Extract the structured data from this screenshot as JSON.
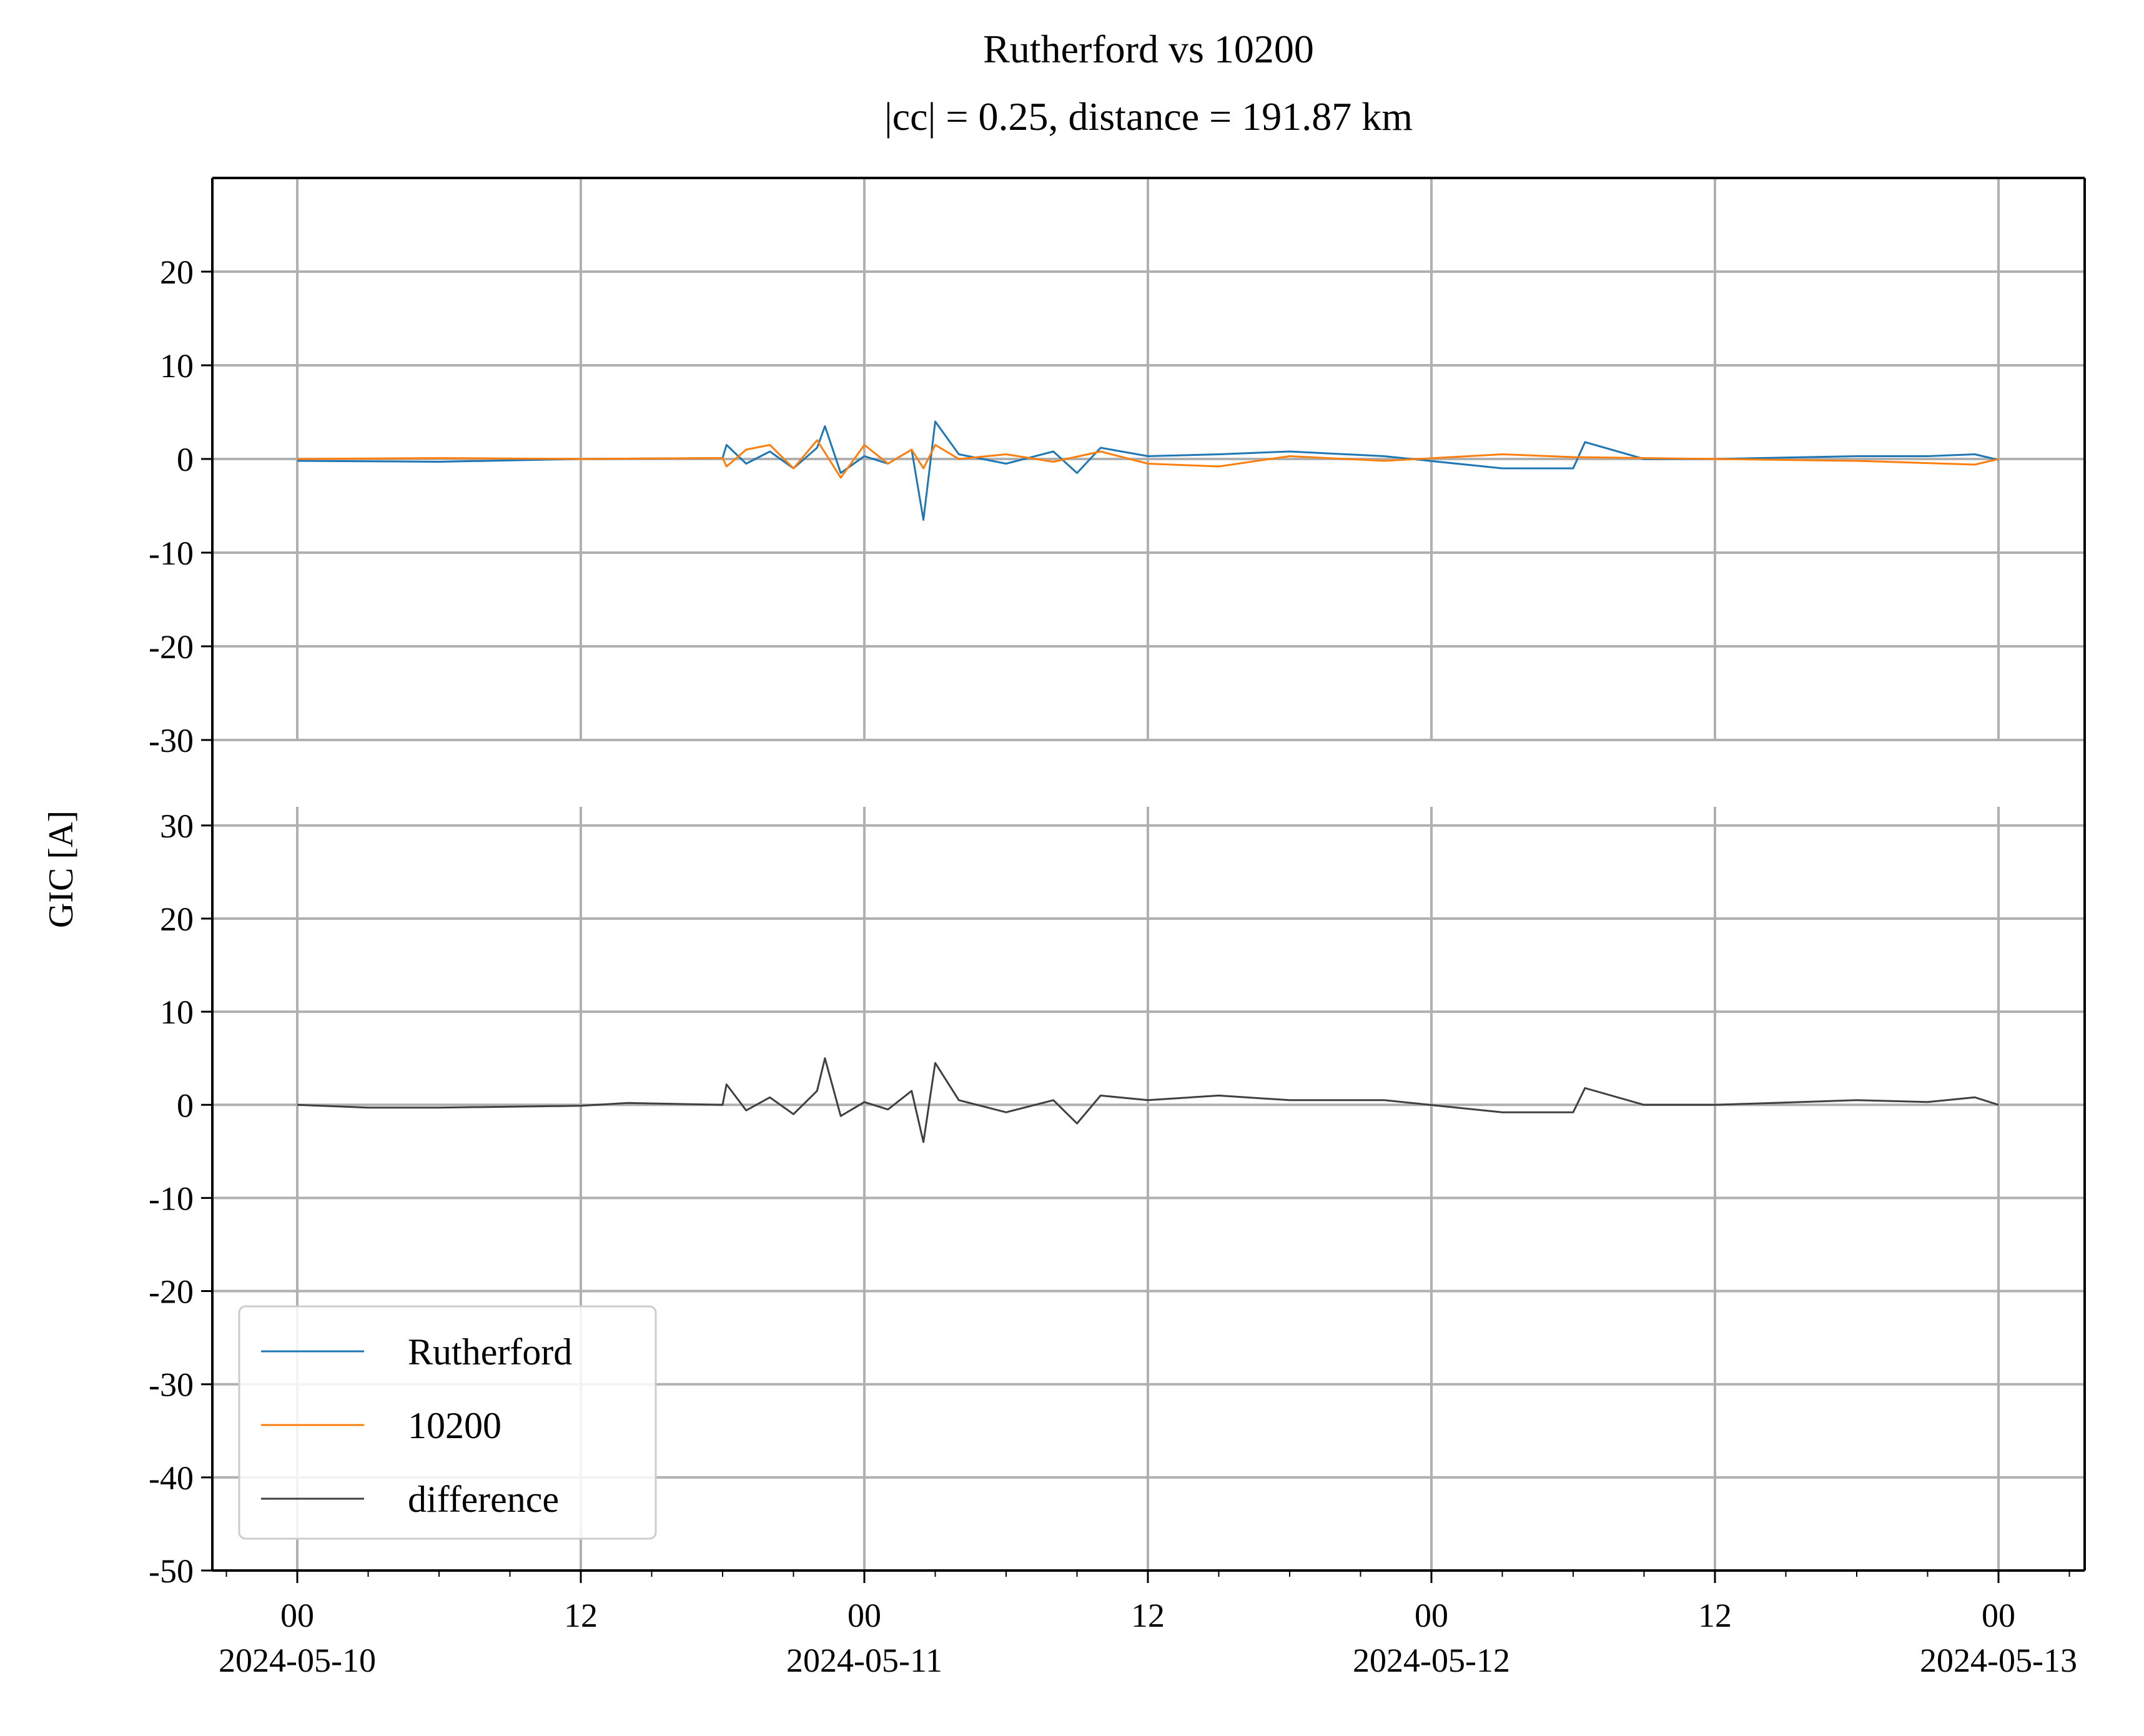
{
  "chart_data": {
    "type": "line",
    "title": "Rutherford vs 10200",
    "subtitle": "|cc| = 0.25, distance = 191.87 km",
    "ylabel": "GIC [A]",
    "xlabel": "",
    "x_range": [
      "2024-05-10T00:00",
      "2024-05-13T00:00"
    ],
    "x_ticks": [
      {
        "time": "2024-05-10T00:00",
        "hour": "00",
        "date": "2024-05-10"
      },
      {
        "time": "2024-05-10T12:00",
        "hour": "12",
        "date": ""
      },
      {
        "time": "2024-05-11T00:00",
        "hour": "00",
        "date": "2024-05-11"
      },
      {
        "time": "2024-05-11T12:00",
        "hour": "12",
        "date": ""
      },
      {
        "time": "2024-05-12T00:00",
        "hour": "00",
        "date": "2024-05-12"
      },
      {
        "time": "2024-05-12T12:00",
        "hour": "12",
        "date": ""
      },
      {
        "time": "2024-05-13T00:00",
        "hour": "00",
        "date": "2024-05-13"
      }
    ],
    "grid": true,
    "legend_position": "lower-left",
    "colors": {
      "Rutherford": "#1f77b4",
      "10200": "#ff7f0e",
      "difference": "#404040"
    },
    "panels": [
      {
        "id": "top",
        "ylim": [
          -30,
          30
        ],
        "yticks": [
          "20",
          "10",
          "0",
          "-10",
          "-20",
          "-30"
        ],
        "yticks_values": [
          20,
          10,
          0,
          -10,
          -20,
          -30
        ],
        "series": [
          {
            "name": "Rutherford",
            "x": [
              "2024-05-10T00:00",
              "2024-05-10T06:00",
              "2024-05-10T12:00",
              "2024-05-10T18:00",
              "2024-05-10T18:10",
              "2024-05-10T19:00",
              "2024-05-10T20:00",
              "2024-05-10T21:00",
              "2024-05-10T22:00",
              "2024-05-10T22:20",
              "2024-05-10T23:00",
              "2024-05-11T00:00",
              "2024-05-11T01:00",
              "2024-05-11T02:00",
              "2024-05-11T02:30",
              "2024-05-11T03:00",
              "2024-05-11T04:00",
              "2024-05-11T06:00",
              "2024-05-11T08:00",
              "2024-05-11T09:00",
              "2024-05-11T10:00",
              "2024-05-11T12:00",
              "2024-05-11T15:00",
              "2024-05-11T18:00",
              "2024-05-11T22:00",
              "2024-05-12T03:00",
              "2024-05-12T06:00",
              "2024-05-12T06:30",
              "2024-05-12T09:00",
              "2024-05-12T12:00",
              "2024-05-12T18:00",
              "2024-05-12T21:00",
              "2024-05-12T23:00",
              "2024-05-13T00:00"
            ],
            "y": [
              -0.2,
              -0.3,
              0.0,
              0.1,
              1.5,
              -0.5,
              0.8,
              -1.0,
              1.2,
              3.5,
              -1.5,
              0.3,
              -0.5,
              1.0,
              -6.5,
              4.0,
              0.5,
              -0.5,
              0.8,
              -1.5,
              1.2,
              0.3,
              0.5,
              0.8,
              0.3,
              -1.0,
              -1.0,
              1.8,
              0.0,
              0.0,
              0.3,
              0.3,
              0.5,
              -0.1
            ]
          },
          {
            "name": "10200",
            "x": [
              "2024-05-10T00:00",
              "2024-05-10T06:00",
              "2024-05-10T12:00",
              "2024-05-10T18:00",
              "2024-05-10T18:10",
              "2024-05-10T19:00",
              "2024-05-10T20:00",
              "2024-05-10T21:00",
              "2024-05-10T22:00",
              "2024-05-10T23:00",
              "2024-05-11T00:00",
              "2024-05-11T01:00",
              "2024-05-11T02:00",
              "2024-05-11T02:30",
              "2024-05-11T03:00",
              "2024-05-11T04:00",
              "2024-05-11T06:00",
              "2024-05-11T08:00",
              "2024-05-11T10:00",
              "2024-05-11T12:00",
              "2024-05-11T15:00",
              "2024-05-11T18:00",
              "2024-05-11T22:00",
              "2024-05-12T03:00",
              "2024-05-12T06:00",
              "2024-05-12T09:00",
              "2024-05-12T12:00",
              "2024-05-12T18:00",
              "2024-05-12T23:00",
              "2024-05-13T00:00"
            ],
            "y": [
              0.0,
              0.1,
              0.0,
              0.1,
              -0.8,
              1.0,
              1.5,
              -1.0,
              2.0,
              -2.0,
              1.5,
              -0.5,
              1.0,
              -1.0,
              1.5,
              0.0,
              0.5,
              -0.3,
              0.8,
              -0.5,
              -0.8,
              0.3,
              -0.2,
              0.5,
              0.2,
              0.1,
              0.0,
              -0.2,
              -0.6,
              0.0
            ]
          }
        ]
      },
      {
        "id": "bottom",
        "ylim": [
          -50,
          32
        ],
        "yticks": [
          "30",
          "20",
          "10",
          "0",
          "-10",
          "-20",
          "-30",
          "-40",
          "-50"
        ],
        "yticks_values": [
          30,
          20,
          10,
          0,
          -10,
          -20,
          -30,
          -40,
          -50
        ],
        "series": [
          {
            "name": "difference",
            "x": [
              "2024-05-10T00:00",
              "2024-05-10T03:00",
              "2024-05-10T06:00",
              "2024-05-10T12:00",
              "2024-05-10T14:00",
              "2024-05-10T18:00",
              "2024-05-10T18:10",
              "2024-05-10T19:00",
              "2024-05-10T20:00",
              "2024-05-10T21:00",
              "2024-05-10T22:00",
              "2024-05-10T22:20",
              "2024-05-10T23:00",
              "2024-05-11T00:00",
              "2024-05-11T01:00",
              "2024-05-11T02:00",
              "2024-05-11T02:30",
              "2024-05-11T03:00",
              "2024-05-11T04:00",
              "2024-05-11T06:00",
              "2024-05-11T08:00",
              "2024-05-11T09:00",
              "2024-05-11T10:00",
              "2024-05-11T12:00",
              "2024-05-11T15:00",
              "2024-05-11T18:00",
              "2024-05-11T22:00",
              "2024-05-12T03:00",
              "2024-05-12T06:00",
              "2024-05-12T06:30",
              "2024-05-12T09:00",
              "2024-05-12T12:00",
              "2024-05-12T18:00",
              "2024-05-12T21:00",
              "2024-05-12T23:00",
              "2024-05-13T00:00"
            ],
            "y": [
              0.0,
              -0.3,
              -0.3,
              -0.1,
              0.2,
              0.0,
              2.2,
              -0.6,
              0.8,
              -1.0,
              1.5,
              5.0,
              -1.2,
              0.3,
              -0.5,
              1.5,
              -4.0,
              4.5,
              0.5,
              -0.8,
              0.5,
              -2.0,
              1.0,
              0.5,
              1.0,
              0.5,
              0.5,
              -0.8,
              -0.8,
              1.8,
              0.0,
              0.0,
              0.5,
              0.3,
              0.8,
              0.0
            ]
          }
        ]
      }
    ]
  }
}
